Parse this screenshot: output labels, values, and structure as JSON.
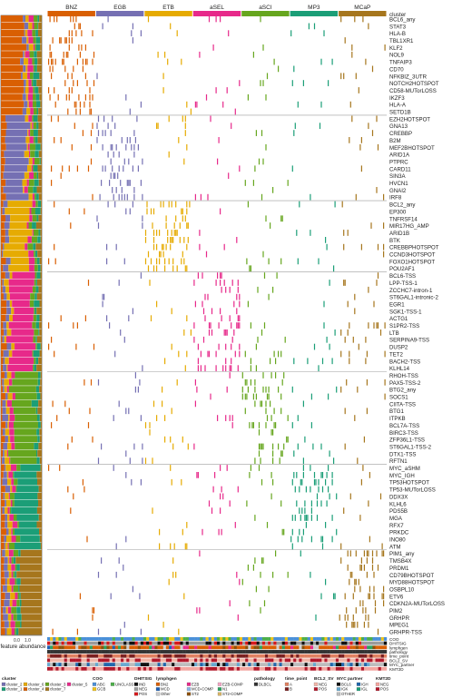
{
  "chart_data": {
    "type": "heatmap",
    "title": "",
    "subtitle": "",
    "clusters": [
      {
        "name": "BNZ",
        "color": "#d95f02"
      },
      {
        "name": "EGB",
        "color": "#7570b3"
      },
      {
        "name": "ETB",
        "color": "#e6ab02"
      },
      {
        "name": "aSEL",
        "color": "#e7298a"
      },
      {
        "name": "aSCI",
        "color": "#66a61e"
      },
      {
        "name": "MP3",
        "color": "#1b9e77"
      },
      {
        "name": "MCaP",
        "color": "#a6761d"
      }
    ],
    "column_header": "cluster",
    "features": [
      "BCL6_any",
      "STAT3",
      "HLA-B",
      "TBL1XR1",
      "KLF2",
      "NOL9",
      "TNFAIP3",
      "CD70",
      "NFKBIZ_3UTR",
      "NOTCH2HOTSPOT",
      "CD58-MUTorLOSS",
      "IKZF3",
      "HLA-A",
      "SETD1B",
      "EZH2HOTSPOT",
      "GNA13",
      "CREBBP",
      "B2M",
      "MEF2BHOTSPOT",
      "ARID1A",
      "PTPRC",
      "CARD11",
      "SIN3A",
      "HVCN1",
      "GNAI2",
      "IRF8",
      "BCL2_any",
      "EP300",
      "TNFRSF14",
      "MIR17HG_AMP",
      "ARID1B",
      "BTK",
      "CREBBPHOTSPOT",
      "CCND3HOTSPOT",
      "FOXO1HOTSPOT",
      "POU2AF1",
      "BCL6-TSS",
      "LPP-TSS-1",
      "ZCCHC7-intron-1",
      "ST6GAL1-intronic-2",
      "EGR1",
      "SGK1-TSS-1",
      "ACTG1",
      "S1PR2-TSS",
      "LTB",
      "SERPINA9-TSS",
      "DUSP2",
      "TET2",
      "BACH2-TSS",
      "KLHL14",
      "RHOH-TSS",
      "PAX5-TSS-2",
      "BTG2_any",
      "SOCS1",
      "CIITA-TSS",
      "BTG1",
      "ITPKB",
      "BCL7A-TSS",
      "BIRC3-TSS",
      "ZFP36L1-TSS",
      "ST6GAL1-TSS-2",
      "DTX1-TSS",
      "RFTN1",
      "MYC_aSHM",
      "MYC_IGH",
      "TP53HOTSPOT",
      "TP53-MUTorLOSS",
      "DDX3X",
      "KLHL6",
      "PDS5B",
      "MGA",
      "RFX7",
      "PRKDC",
      "INO80",
      "ATM",
      "PIM1_any",
      "TMSB4X",
      "PRDM1",
      "CD79BHOTSPOT",
      "MYD88HOTSPOT",
      "OSBPL10",
      "ETV6",
      "CDKN2A-MUTorLOSS",
      "PIM2",
      "GRHPR",
      "MPEG1",
      "GRHPR-TSS"
    ],
    "feature_groups": [
      {
        "cluster": "BNZ",
        "count": 14
      },
      {
        "cluster": "EGB",
        "count": 12
      },
      {
        "cluster": "ETB",
        "count": 10
      },
      {
        "cluster": "aSEL",
        "count": 14
      },
      {
        "cluster": "aSCI",
        "count": 13
      },
      {
        "cluster": "MP3",
        "count": 12
      },
      {
        "cluster": "MCaP",
        "count": 12
      }
    ],
    "annotation_tracks": [
      "COO",
      "DHITSIG",
      "lymphgen",
      "pathology",
      "time_point",
      "BCL2_SV",
      "MYC_partner",
      "KMT2D"
    ],
    "abundance_axis": {
      "label": "feature abundance",
      "ticks": [
        "0.0",
        "1.0"
      ]
    },
    "legend": {
      "cluster": {
        "title": "cluster",
        "items": [
          {
            "label": "cluster_2",
            "color": "#7570b3"
          },
          {
            "label": "cluster_6",
            "color": "#e6ab02"
          },
          {
            "label": "cluster_3",
            "color": "#66a61e"
          },
          {
            "label": "cluster_5",
            "color": "#e7298a"
          },
          {
            "label": "cluster_1",
            "color": "#1b9e77"
          },
          {
            "label": "cluster_4",
            "color": "#d95f02"
          },
          {
            "label": "cluster_7",
            "color": "#a6761d"
          }
        ]
      },
      "COO": {
        "title": "COO",
        "items": [
          {
            "label": "ABC",
            "color": "#4a90d9"
          },
          {
            "label": "UNCLASS",
            "color": "#4daf4a"
          },
          {
            "label": "GCB",
            "color": "#f0c419"
          }
        ]
      },
      "DHITSIG": {
        "title": "DHITSIG",
        "items": [
          {
            "label": "IND",
            "color": "#111111"
          },
          {
            "label": "NEG",
            "color": "#9b9b9b"
          },
          {
            "label": "POS",
            "color": "#d7191c"
          }
        ]
      },
      "lymphgen": {
        "title": "lymphgen",
        "items": [
          {
            "label": "BN2",
            "color": "#d95f02"
          },
          {
            "label": "EZB",
            "color": "#e7298a"
          },
          {
            "label": "EZB-COMP",
            "color": "#f4a6c6"
          },
          {
            "label": "MCD",
            "color": "#1f5fb4"
          },
          {
            "label": "MCD-COMP",
            "color": "#8ab4e8"
          },
          {
            "label": "N1",
            "color": "#2ca25f"
          },
          {
            "label": "Other",
            "color": "#cccccc"
          },
          {
            "label": "ST2",
            "color": "#8c510a"
          },
          {
            "label": "ST2-COMP",
            "color": "#d8b365"
          }
        ]
      },
      "pathology": {
        "title": "pathology",
        "items": [
          {
            "label": "DLBCL",
            "color": "#333333"
          }
        ]
      },
      "time_point": {
        "title": "time_point",
        "items": [
          {
            "label": "A",
            "color": "#e08060"
          },
          {
            "label": "B",
            "color": "#7a1f1f"
          }
        ]
      },
      "BCL2_SV": {
        "title": "BCL2_SV",
        "items": [
          {
            "label": "NEG",
            "color": "#f1b6a8"
          },
          {
            "label": "POS",
            "color": "#b2182b"
          }
        ]
      },
      "MYC_partner": {
        "title": "MYC partner",
        "items": [
          {
            "label": "BCL6",
            "color": "#111111"
          },
          {
            "label": "IGH",
            "color": "#2166ac"
          },
          {
            "label": "IGK",
            "color": "#67a9cf"
          },
          {
            "label": "IGL",
            "color": "#1b9e77"
          },
          {
            "label": "OTHER",
            "color": "#bdbdbd"
          }
        ]
      },
      "KMT2D": {
        "title": "KMT2D",
        "items": [
          {
            "label": "NEG",
            "color": "#f4a6a0"
          },
          {
            "label": "POS",
            "color": "#b2182b"
          }
        ]
      }
    }
  }
}
